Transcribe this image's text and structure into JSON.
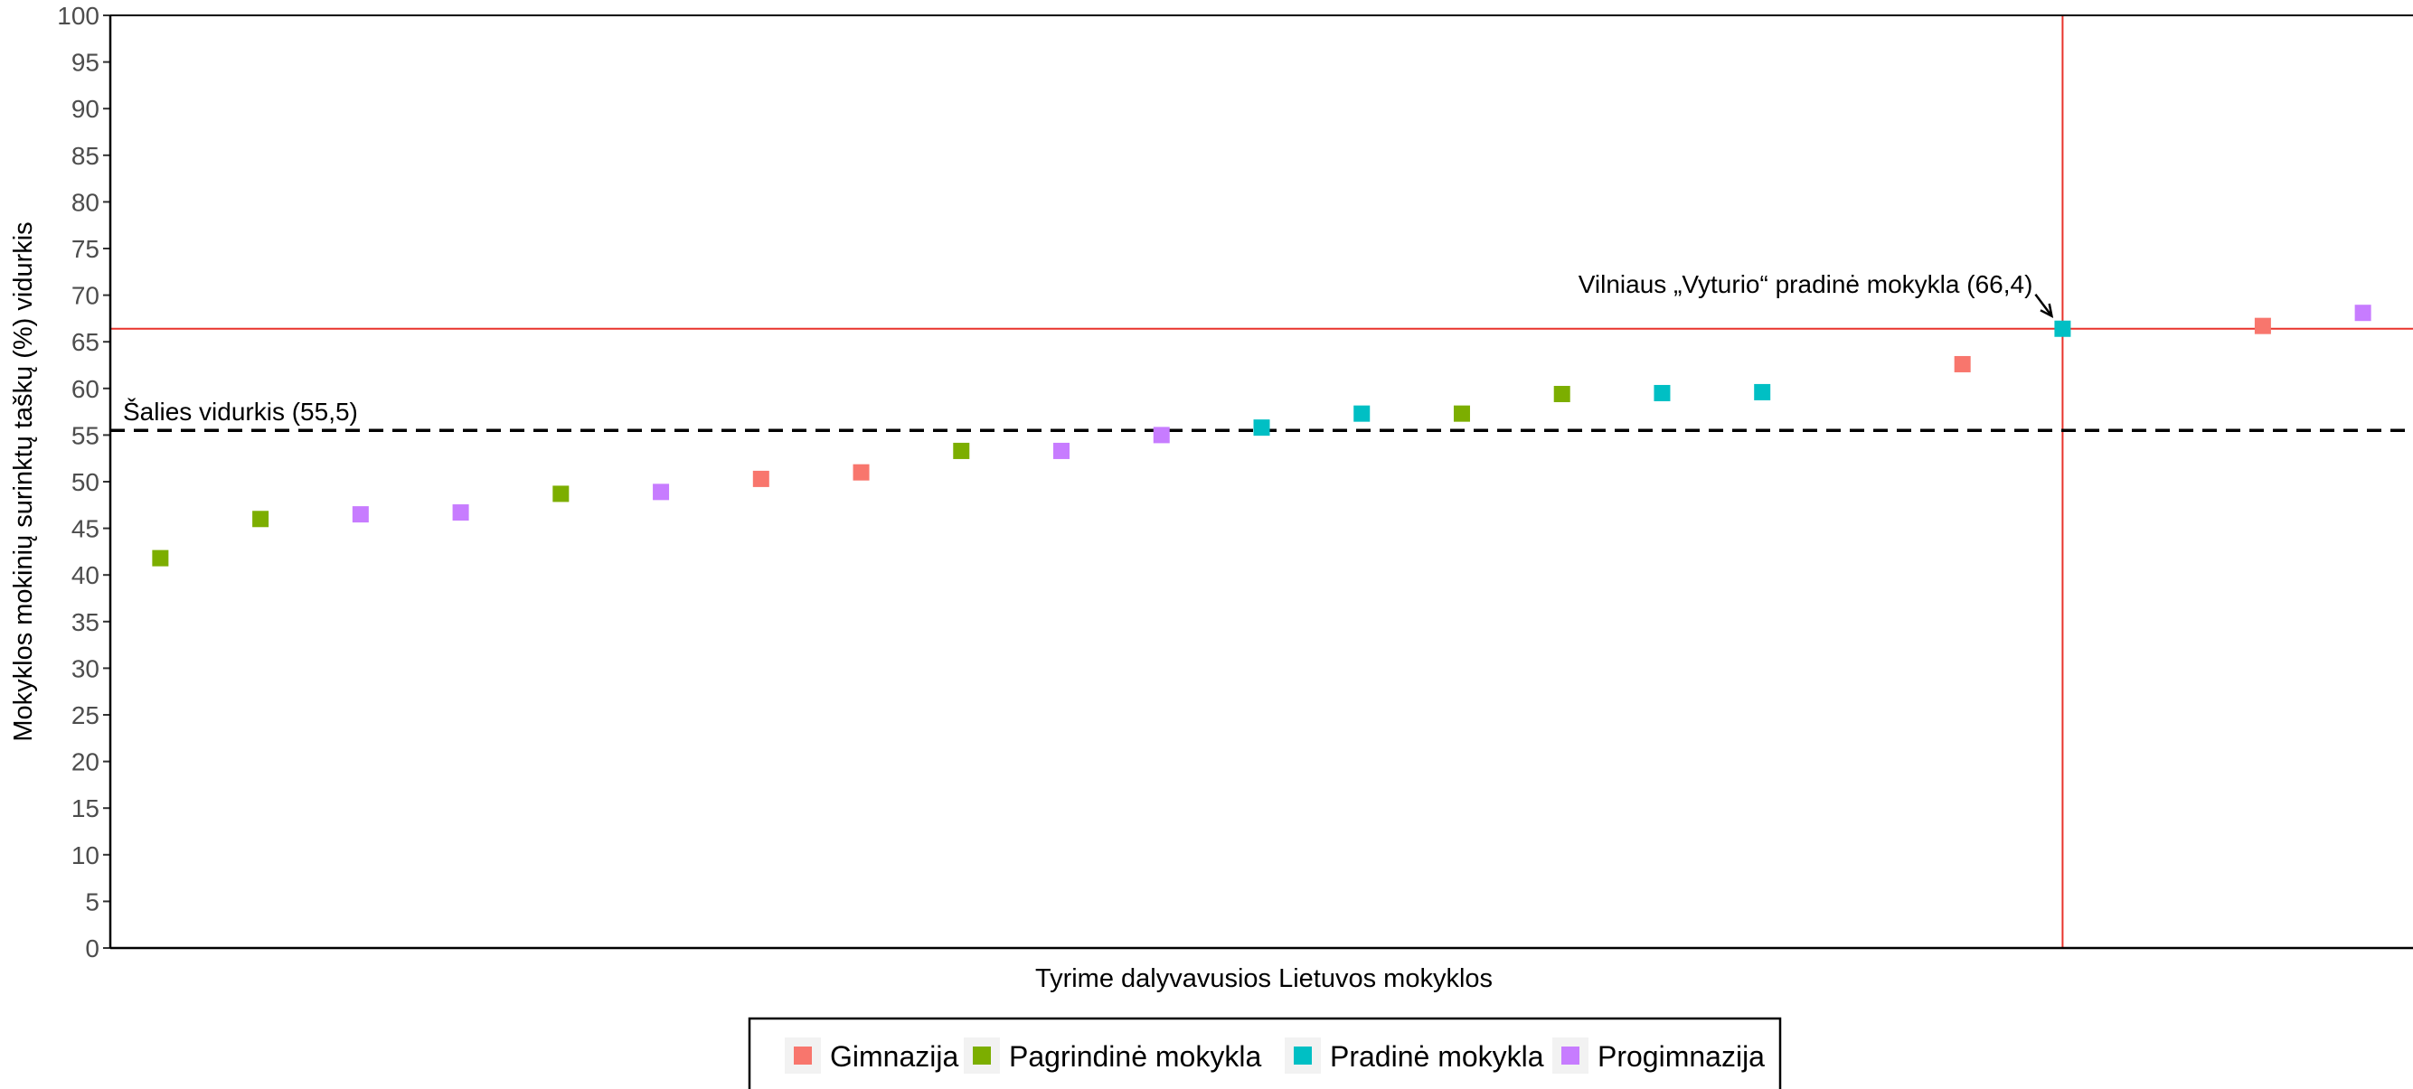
{
  "chart_data": {
    "type": "scatter",
    "xlabel": "Tyrime dalyvavusios Lietuvos mokyklos",
    "ylabel": "Mokyklos mokinių surinktų taškų (%) vidurkis",
    "ylim": [
      0,
      100
    ],
    "yticks": [
      "0",
      "5",
      "10",
      "15",
      "20",
      "25",
      "30",
      "35",
      "40",
      "45",
      "50",
      "55",
      "60",
      "65",
      "70",
      "75",
      "80",
      "85",
      "90",
      "95",
      "100"
    ],
    "grid": false,
    "legend_position": "bottom",
    "series": [
      {
        "name": "Gimnazija",
        "color": "#F8766D",
        "points": [
          [
            7,
            50.3
          ],
          [
            8,
            51.0
          ],
          [
            19,
            62.6
          ],
          [
            22,
            66.7
          ]
        ]
      },
      {
        "name": "Pagrindinė mokykla",
        "color": "#7CAE00",
        "points": [
          [
            1,
            41.8
          ],
          [
            2,
            46.0
          ],
          [
            5,
            48.7
          ],
          [
            9,
            53.3
          ],
          [
            14,
            57.3
          ],
          [
            15,
            59.4
          ]
        ]
      },
      {
        "name": "Pradinė mokykla",
        "color": "#00BFC4",
        "points": [
          [
            12,
            55.8
          ],
          [
            13,
            57.3
          ],
          [
            16,
            59.5
          ],
          [
            17,
            59.6
          ],
          [
            20,
            66.4
          ]
        ]
      },
      {
        "name": "Progimnazija",
        "color": "#C77CFF",
        "points": [
          [
            3,
            46.5
          ],
          [
            4,
            46.7
          ],
          [
            6,
            48.9
          ],
          [
            10,
            53.3
          ],
          [
            11,
            55.0
          ],
          [
            23,
            68.1
          ]
        ]
      }
    ],
    "reference_lines": {
      "national_average": {
        "value": 55.5,
        "label": "Šalies vidurkis (55,5)",
        "color": "#000000",
        "style": "dashed"
      },
      "highlight_y": {
        "value": 66.4,
        "color": "#E8332C"
      },
      "highlight_x": {
        "value": 20,
        "color": "#E8332C"
      }
    },
    "annotation": {
      "label": "Vilniaus „Vyturio“ pradinė mokykla (66,4)",
      "x": 20,
      "y": 66.4
    }
  }
}
